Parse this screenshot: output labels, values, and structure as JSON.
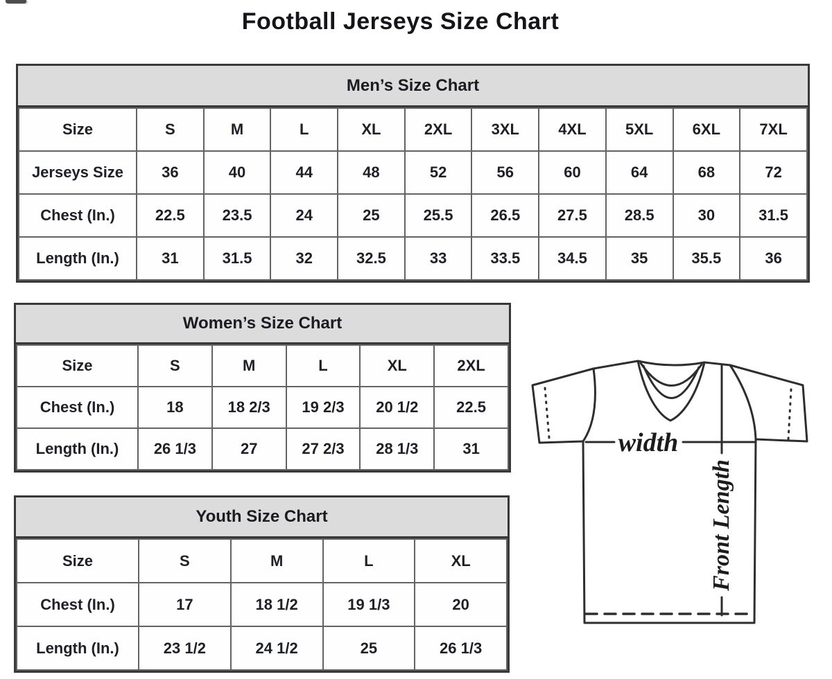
{
  "page": {
    "title": "Football Jerseys Size Chart"
  },
  "tables": {
    "mens": {
      "title": "Men’s Size Chart",
      "rows": [
        [
          "Size",
          "S",
          "M",
          "L",
          "XL",
          "2XL",
          "3XL",
          "4XL",
          "5XL",
          "6XL",
          "7XL"
        ],
        [
          "Jerseys Size",
          "36",
          "40",
          "44",
          "48",
          "52",
          "56",
          "60",
          "64",
          "68",
          "72"
        ],
        [
          "Chest (In.)",
          "22.5",
          "23.5",
          "24",
          "25",
          "25.5",
          "26.5",
          "27.5",
          "28.5",
          "30",
          "31.5"
        ],
        [
          "Length (In.)",
          "31",
          "31.5",
          "32",
          "32.5",
          "33",
          "33.5",
          "34.5",
          "35",
          "35.5",
          "36"
        ]
      ]
    },
    "womens": {
      "title": "Women’s Size Chart",
      "rows": [
        [
          "Size",
          "S",
          "M",
          "L",
          "XL",
          "2XL"
        ],
        [
          "Chest (In.)",
          "18",
          "18 2/3",
          "19 2/3",
          "20 1/2",
          "22.5"
        ],
        [
          "Length (In.)",
          "26 1/3",
          "27",
          "27 2/3",
          "28 1/3",
          "31"
        ]
      ]
    },
    "youth": {
      "title": "Youth Size Chart",
      "rows": [
        [
          "Size",
          "S",
          "M",
          "L",
          "XL"
        ],
        [
          "Chest (In.)",
          "17",
          "18 1/2",
          "19 1/3",
          "20"
        ],
        [
          "Length (In.)",
          "23 1/2",
          "24 1/2",
          "25",
          "26 1/3"
        ]
      ]
    }
  },
  "diagram": {
    "width_label": "width",
    "front_length_label": "Front Length"
  },
  "colors": {
    "header_bg": "#dcdcdc",
    "text": "#1f1f28",
    "line": "#2e2e2e"
  }
}
